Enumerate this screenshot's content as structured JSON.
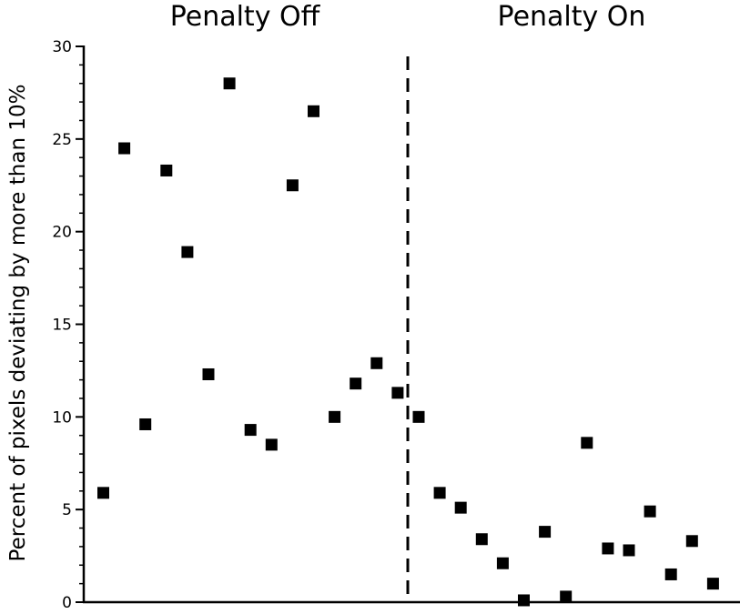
{
  "chart_data": {
    "type": "scatter",
    "title": "",
    "xlabel": "",
    "ylabel": "Percent of pixels deviating by more than 10%",
    "ylim": [
      0,
      30
    ],
    "yticks": [
      0,
      5,
      10,
      15,
      20,
      25,
      30
    ],
    "ytick_labels": [
      "0",
      "5",
      "10",
      "15",
      "20",
      "25",
      "30"
    ],
    "grid": false,
    "legend": "none",
    "marker": "square",
    "marker_color": "#000000",
    "region_labels": [
      "Penalty Off",
      "Penalty On"
    ],
    "divider": "dashed vertical line between Penalty Off and Penalty On",
    "series": [
      {
        "x": [
          1,
          2,
          3,
          4,
          5,
          6,
          7,
          8,
          9,
          10,
          11,
          12,
          13,
          14,
          15,
          16,
          17,
          18,
          19,
          20,
          21,
          22,
          23,
          24,
          25,
          26,
          27,
          28,
          29,
          30
        ],
        "values": [
          5.9,
          24.5,
          9.6,
          23.3,
          18.9,
          12.3,
          28.0,
          9.3,
          8.5,
          22.5,
          26.5,
          10.0,
          11.8,
          12.9,
          11.3,
          10.0,
          5.9,
          5.1,
          3.4,
          2.1,
          0.1,
          3.8,
          0.3,
          8.6,
          2.9,
          2.8,
          4.9,
          1.5,
          3.3,
          1.0
        ]
      }
    ]
  }
}
